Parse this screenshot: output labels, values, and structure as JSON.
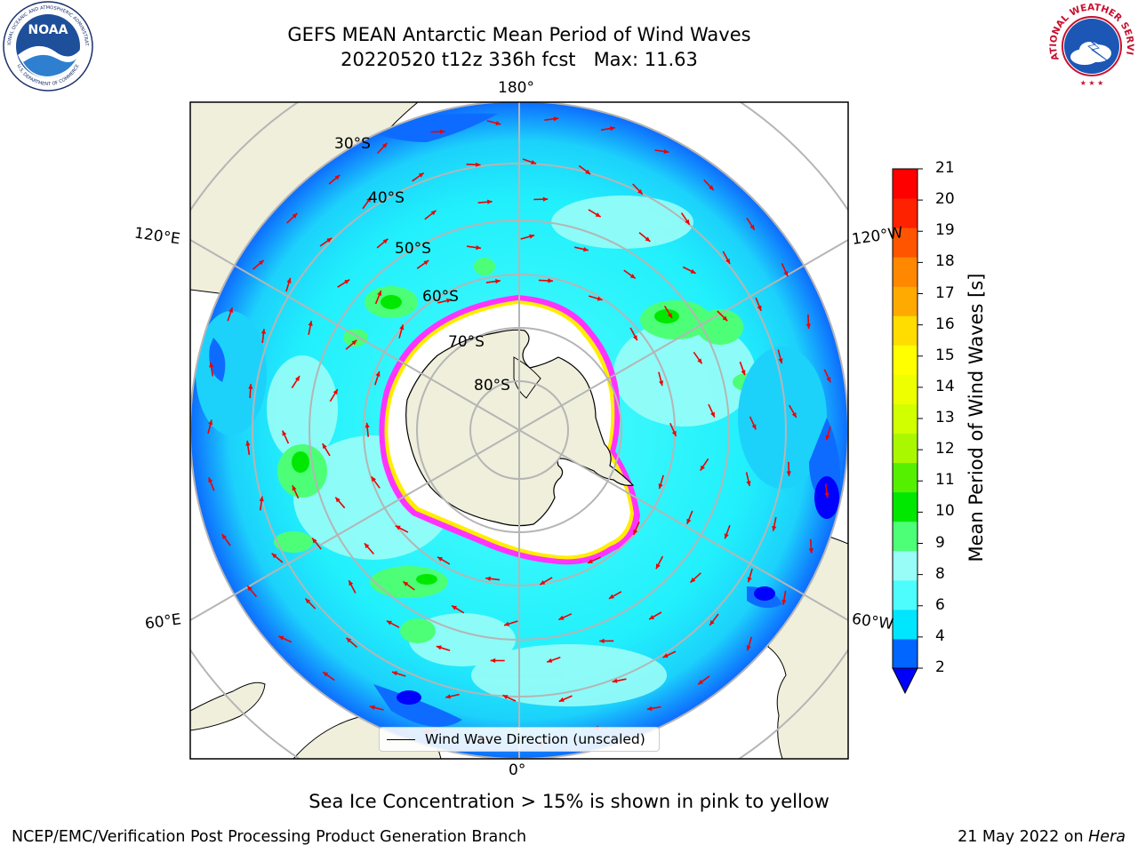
{
  "header": {
    "title": "GEFS MEAN Antarctic Mean Period of Wind Waves",
    "subtitle": "20220520 t12z 336h fcst   Max: 11.63"
  },
  "logos": {
    "noaa_text": "NOAA",
    "noaa_ring": "NATIONAL OCEANIC AND ATMOSPHERIC ADMINISTRATION",
    "noaa_ring_bottom": "U.S. DEPARTMENT OF COMMERCE",
    "nws_ring": "NATIONAL WEATHER SERVICE"
  },
  "map": {
    "projection": "south-polar-stereographic",
    "latitude_labels": [
      "30°S",
      "40°S",
      "50°S",
      "60°S",
      "70°S",
      "80°S"
    ],
    "longitude_labels": {
      "top": "180°",
      "bottom": "0°",
      "upper_left": "120°E",
      "lower_left": "60°E",
      "upper_right": "120°W",
      "lower_right": "60°W"
    },
    "legend_label": "Wind Wave Direction (unscaled)",
    "colors": {
      "land": "#efefdc",
      "sea_ice": "#ffffff",
      "ice_edge": [
        "#ff33ff",
        "#ff99cc",
        "#ffee00"
      ],
      "arrow": "#ee0000"
    }
  },
  "colorbar": {
    "title": "Mean Period of Wind Waves [s]",
    "ticks": [
      "2",
      "4",
      "6",
      "8",
      "9",
      "10",
      "11",
      "12",
      "13",
      "14",
      "15",
      "16",
      "17",
      "18",
      "19",
      "20",
      "21"
    ],
    "colors": [
      "#0066ff",
      "#00e6ff",
      "#4dfdfd",
      "#99fdf7",
      "#4cff77",
      "#00e800",
      "#55f000",
      "#aaf800",
      "#d2ff00",
      "#eeff00",
      "#ffff00",
      "#ffdd00",
      "#ffaa00",
      "#ff8800",
      "#ff5500",
      "#ff2200",
      "#ff0000"
    ],
    "extend_color": "#0000ff"
  },
  "footer": {
    "caption": "Sea Ice Concentration > 15% is shown in pink to yellow",
    "credit": "NCEP/EMC/Verification Post Processing Product Generation Branch",
    "date": "21 May 2022 on ",
    "host": "Hera"
  }
}
